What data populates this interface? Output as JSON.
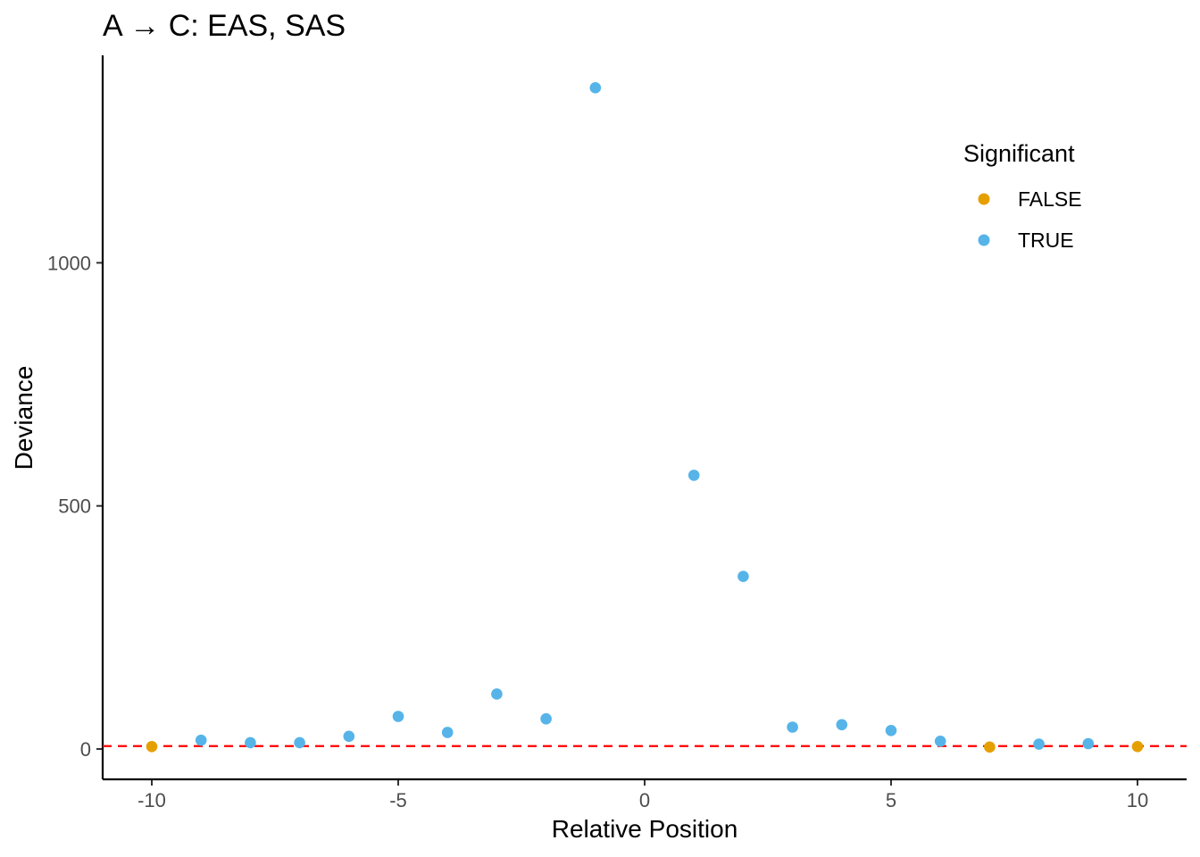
{
  "chart_data": {
    "type": "scatter",
    "title": "A → C: EAS, SAS",
    "xlabel": "Relative Position",
    "ylabel": "Deviance",
    "xlim": [
      -11,
      11
    ],
    "ylim": [
      -60,
      1430
    ],
    "x_ticks": [
      -10,
      -5,
      0,
      5,
      10
    ],
    "x_tick_labels": [
      "-10",
      "-5",
      "0",
      "5",
      "10"
    ],
    "y_ticks": [
      0,
      500,
      1000
    ],
    "y_tick_labels": [
      "0",
      "500",
      "1000"
    ],
    "grid": false,
    "reference_line": {
      "y": 6,
      "color": "#ff0000",
      "style": "dashed"
    },
    "legend": {
      "title": "Significant",
      "position": "top-right",
      "entries": [
        {
          "label": "FALSE",
          "color": "#E69F00"
        },
        {
          "label": "TRUE",
          "color": "#56B4E9"
        }
      ]
    },
    "series": [
      {
        "name": "FALSE",
        "color": "#E69F00",
        "points": [
          {
            "x": -10,
            "y": 5
          },
          {
            "x": 7,
            "y": 4
          },
          {
            "x": 10,
            "y": 5
          }
        ]
      },
      {
        "name": "TRUE",
        "color": "#56B4E9",
        "points": [
          {
            "x": -9,
            "y": 18
          },
          {
            "x": -8,
            "y": 13
          },
          {
            "x": -7,
            "y": 13
          },
          {
            "x": -6,
            "y": 26
          },
          {
            "x": -5,
            "y": 67
          },
          {
            "x": -4,
            "y": 34
          },
          {
            "x": -3,
            "y": 113
          },
          {
            "x": -2,
            "y": 62
          },
          {
            "x": -1,
            "y": 1360
          },
          {
            "x": 1,
            "y": 563
          },
          {
            "x": 2,
            "y": 355
          },
          {
            "x": 3,
            "y": 45
          },
          {
            "x": 4,
            "y": 50
          },
          {
            "x": 5,
            "y": 38
          },
          {
            "x": 6,
            "y": 16
          },
          {
            "x": 8,
            "y": 10
          },
          {
            "x": 9,
            "y": 11
          }
        ]
      }
    ]
  }
}
